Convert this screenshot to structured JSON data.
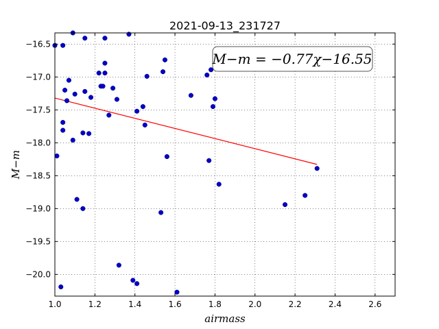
{
  "chart_data": {
    "type": "scatter",
    "title": "2021-09-13_231727",
    "xlabel": "airmass",
    "ylabel": "M−m",
    "xlim": [
      1.0,
      2.7
    ],
    "ylim": [
      -20.33,
      -16.33
    ],
    "y_inverted": false,
    "grid": true,
    "xticks": [
      1.0,
      1.2,
      1.4,
      1.6,
      1.8,
      2.0,
      2.2,
      2.4,
      2.6
    ],
    "xtick_labels": [
      "1.0",
      "1.2",
      "1.4",
      "1.6",
      "1.8",
      "2.0",
      "2.2",
      "2.4",
      "2.6"
    ],
    "yticks": [
      -16.5,
      -17.0,
      -17.5,
      -18.0,
      -18.5,
      -19.0,
      -19.5,
      -20.0
    ],
    "ytick_labels": [
      "−16.5",
      "−17.0",
      "−17.5",
      "−18.0",
      "−18.5",
      "−19.0",
      "−19.5",
      "−20.0"
    ],
    "annotation": "M−m = −0.77χ−16.55",
    "fit": {
      "slope": -0.77,
      "intercept": -16.55,
      "x_range": [
        1.0,
        2.31
      ],
      "color": "#ff0000"
    },
    "marker_color": "#0000cc",
    "points": [
      {
        "x": 1.0,
        "y": -16.52
      },
      {
        "x": 1.04,
        "y": -16.52
      },
      {
        "x": 1.09,
        "y": -16.33
      },
      {
        "x": 1.15,
        "y": -16.41
      },
      {
        "x": 1.25,
        "y": -16.41
      },
      {
        "x": 1.37,
        "y": -16.35
      },
      {
        "x": 1.25,
        "y": -16.79
      },
      {
        "x": 1.22,
        "y": -16.94
      },
      {
        "x": 1.25,
        "y": -16.94
      },
      {
        "x": 1.07,
        "y": -17.05
      },
      {
        "x": 1.23,
        "y": -17.14
      },
      {
        "x": 1.24,
        "y": -17.14
      },
      {
        "x": 1.29,
        "y": -17.17
      },
      {
        "x": 1.05,
        "y": -17.2
      },
      {
        "x": 1.15,
        "y": -17.22
      },
      {
        "x": 1.1,
        "y": -17.26
      },
      {
        "x": 1.18,
        "y": -17.31
      },
      {
        "x": 1.31,
        "y": -17.34
      },
      {
        "x": 1.06,
        "y": -17.36
      },
      {
        "x": 1.41,
        "y": -17.52
      },
      {
        "x": 1.44,
        "y": -17.45
      },
      {
        "x": 1.46,
        "y": -16.99
      },
      {
        "x": 1.55,
        "y": -16.74
      },
      {
        "x": 1.54,
        "y": -16.92
      },
      {
        "x": 1.27,
        "y": -17.58
      },
      {
        "x": 1.04,
        "y": -17.69
      },
      {
        "x": 1.45,
        "y": -17.73
      },
      {
        "x": 1.04,
        "y": -17.81
      },
      {
        "x": 1.14,
        "y": -17.85
      },
      {
        "x": 1.17,
        "y": -17.86
      },
      {
        "x": 1.09,
        "y": -17.96
      },
      {
        "x": 1.01,
        "y": -18.2
      },
      {
        "x": 1.56,
        "y": -18.21
      },
      {
        "x": 1.68,
        "y": -17.28
      },
      {
        "x": 1.76,
        "y": -16.97
      },
      {
        "x": 1.78,
        "y": -16.89
      },
      {
        "x": 1.79,
        "y": -17.45
      },
      {
        "x": 1.8,
        "y": -17.33
      },
      {
        "x": 1.77,
        "y": -18.27
      },
      {
        "x": 1.82,
        "y": -18.63
      },
      {
        "x": 1.11,
        "y": -18.86
      },
      {
        "x": 1.14,
        "y": -19.0
      },
      {
        "x": 1.53,
        "y": -19.06
      },
      {
        "x": 2.31,
        "y": -18.39
      },
      {
        "x": 2.25,
        "y": -18.8
      },
      {
        "x": 2.15,
        "y": -18.94
      },
      {
        "x": 1.32,
        "y": -19.86
      },
      {
        "x": 1.39,
        "y": -20.09
      },
      {
        "x": 1.41,
        "y": -20.14
      },
      {
        "x": 1.03,
        "y": -20.19
      },
      {
        "x": 1.61,
        "y": -20.27
      }
    ]
  }
}
